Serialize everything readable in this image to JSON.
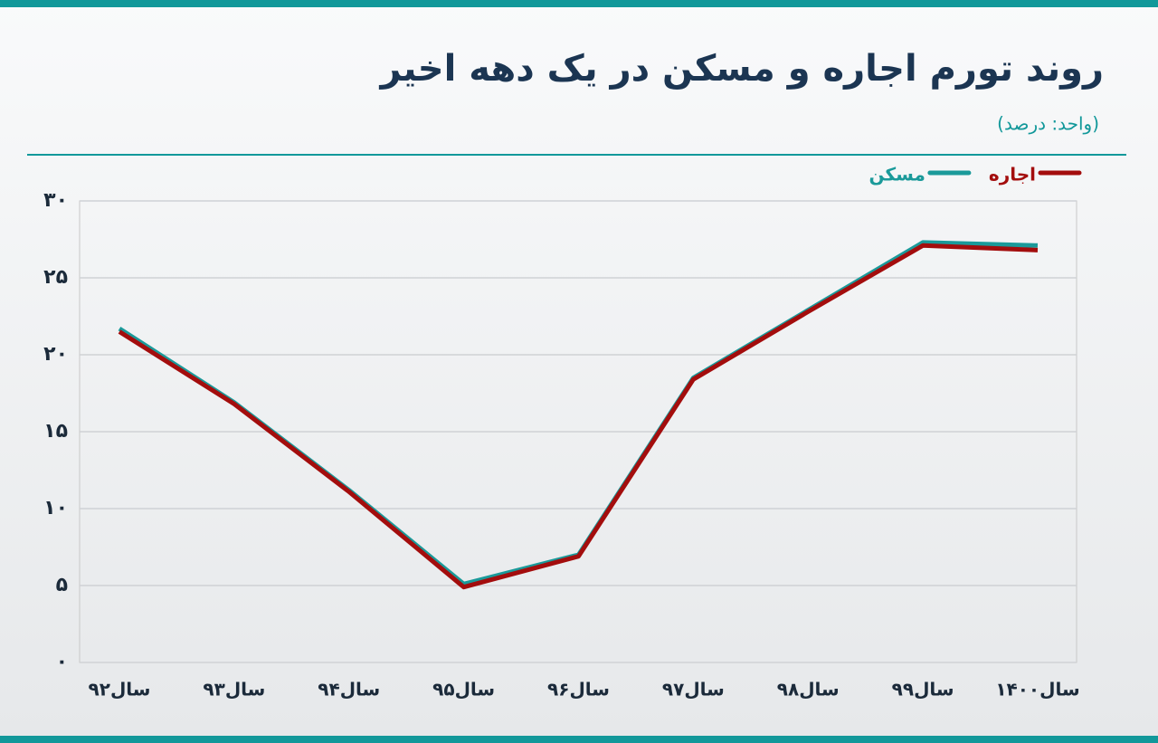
{
  "chart_data": {
    "type": "line",
    "title": "روند تورم اجاره و مسکن در یک دهه اخیر",
    "subtitle": "(واحد: درصد)",
    "categories": [
      "سال۹۲",
      "سال۹۳",
      "سال۹۴",
      "سال۹۵",
      "سال۹۶",
      "سال۹۷",
      "سال۹۸",
      "سال۹۹",
      "سال۱۴۰۰"
    ],
    "series": [
      {
        "name": "مسکن",
        "color": "#1a9a9a",
        "values": [
          21.7,
          16.9,
          11.2,
          5.1,
          7.0,
          18.5,
          22.9,
          27.3,
          27.1
        ]
      },
      {
        "name": "اجاره",
        "color": "#a30d0d",
        "values": [
          21.5,
          16.8,
          11.1,
          4.9,
          6.9,
          18.4,
          22.8,
          27.1,
          26.8
        ]
      }
    ],
    "ylim": [
      0,
      30
    ],
    "yticks": [
      {
        "value": 0,
        "label": "۰"
      },
      {
        "value": 5,
        "label": "۵"
      },
      {
        "value": 10,
        "label": "۱۰"
      },
      {
        "value": 15,
        "label": "۱۵"
      },
      {
        "value": 20,
        "label": "۲۰"
      },
      {
        "value": 25,
        "label": "۲۵"
      },
      {
        "value": 30,
        "label": "۳۰"
      }
    ],
    "grid": true,
    "legend": "top-right"
  }
}
